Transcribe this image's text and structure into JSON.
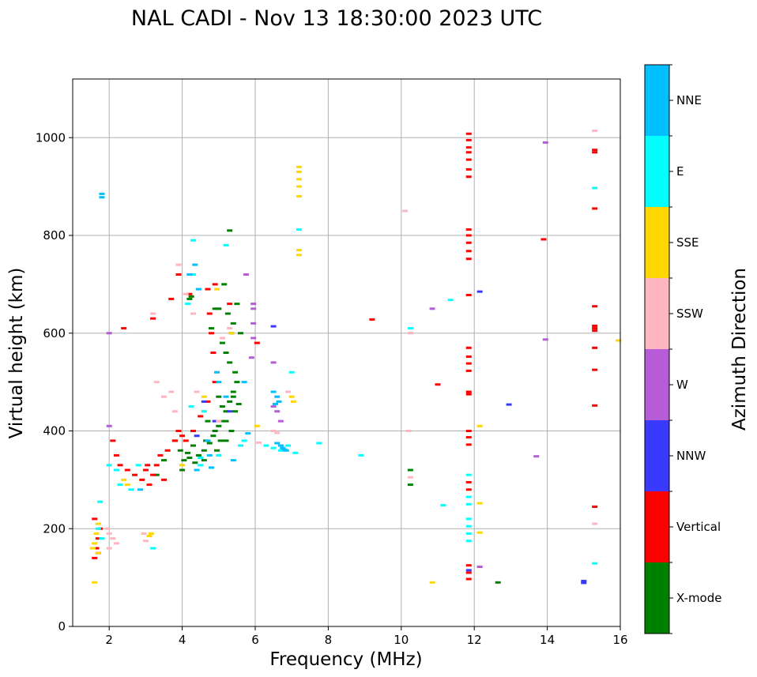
{
  "chart_data": {
    "type": "scatter",
    "title": "NAL CADI - Nov 13 18:30:00 2023 UTC",
    "xlabel": "Frequency (MHz)",
    "ylabel": "Virtual height (km)",
    "xlim": [
      1,
      16
    ],
    "ylim": [
      0,
      1120
    ],
    "xticks": [
      "2",
      "4",
      "6",
      "8",
      "10",
      "12",
      "14",
      "16"
    ],
    "yticks": [
      "0",
      "200",
      "400",
      "600",
      "800",
      "1000"
    ],
    "grid": true,
    "colorbar": {
      "label": "Azimuth Direction",
      "position": "right",
      "categories": [
        "X-mode",
        "Vertical",
        "NNW",
        "W",
        "SSW",
        "SSE",
        "E",
        "NNE"
      ],
      "colors": [
        "#008000",
        "#ff0000",
        "#3a3aff",
        "#b65cd6",
        "#ffb6c1",
        "#ffd700",
        "#00ffff",
        "#00bfff"
      ]
    },
    "series": [
      {
        "name": "X-mode",
        "points": [
          [
            4.05,
            340
          ],
          [
            4.2,
            345
          ],
          [
            4.3,
            370
          ],
          [
            4.45,
            350
          ],
          [
            4.6,
            360
          ],
          [
            4.75,
            375
          ],
          [
            4.85,
            390
          ],
          [
            4.9,
            400
          ],
          [
            5.0,
            410
          ],
          [
            5.1,
            420
          ],
          [
            5.2,
            440
          ],
          [
            5.3,
            460
          ],
          [
            5.4,
            480
          ],
          [
            5.5,
            500
          ],
          [
            5.45,
            520
          ],
          [
            5.3,
            540
          ],
          [
            5.2,
            560
          ],
          [
            5.1,
            580
          ],
          [
            5.35,
            600
          ],
          [
            5.4,
            620
          ],
          [
            5.25,
            640
          ],
          [
            5.5,
            660
          ],
          [
            5.2,
            420
          ],
          [
            5.35,
            400
          ],
          [
            5.05,
            380
          ],
          [
            4.95,
            360
          ],
          [
            4.6,
            340
          ],
          [
            4.35,
            335
          ],
          [
            4.15,
            355
          ],
          [
            4.8,
            610
          ],
          [
            5.0,
            650
          ],
          [
            5.15,
            700
          ],
          [
            4.2,
            670
          ],
          [
            4.25,
            675
          ],
          [
            3.8,
            380
          ],
          [
            3.95,
            360
          ],
          [
            3.5,
            340
          ],
          [
            3.3,
            310
          ],
          [
            4.0,
            320
          ],
          [
            5.4,
            470
          ],
          [
            5.45,
            440
          ],
          [
            5.55,
            455
          ],
          [
            5.0,
            470
          ],
          [
            4.7,
            420
          ],
          [
            4.65,
            380
          ],
          [
            5.6,
            600
          ],
          [
            4.9,
            650
          ],
          [
            5.3,
            810
          ],
          [
            10.25,
            320
          ],
          [
            10.25,
            290
          ],
          [
            12.65,
            90
          ],
          [
            5.2,
            380
          ],
          [
            5.1,
            450
          ]
        ]
      },
      {
        "name": "Vertical",
        "points": [
          [
            1.6,
            140
          ],
          [
            1.65,
            160
          ],
          [
            1.7,
            180
          ],
          [
            1.75,
            200
          ],
          [
            1.6,
            220
          ],
          [
            1.7,
            150
          ],
          [
            2.1,
            380
          ],
          [
            2.2,
            350
          ],
          [
            2.3,
            330
          ],
          [
            2.5,
            320
          ],
          [
            2.7,
            310
          ],
          [
            2.9,
            300
          ],
          [
            3.0,
            320
          ],
          [
            3.1,
            290
          ],
          [
            3.2,
            310
          ],
          [
            3.3,
            330
          ],
          [
            3.4,
            350
          ],
          [
            3.6,
            360
          ],
          [
            3.8,
            380
          ],
          [
            3.9,
            400
          ],
          [
            4.0,
            390
          ],
          [
            4.1,
            380
          ],
          [
            4.3,
            400
          ],
          [
            4.5,
            430
          ],
          [
            4.7,
            460
          ],
          [
            4.9,
            500
          ],
          [
            4.85,
            560
          ],
          [
            4.8,
            600
          ],
          [
            3.7,
            670
          ],
          [
            3.9,
            720
          ],
          [
            4.2,
            680
          ],
          [
            4.7,
            690
          ],
          [
            2.4,
            610
          ],
          [
            3.2,
            630
          ],
          [
            6.05,
            580
          ],
          [
            9.2,
            628
          ],
          [
            11.0,
            495
          ],
          [
            5.3,
            660
          ],
          [
            4.9,
            700
          ],
          [
            4.75,
            640
          ],
          [
            3.5,
            300
          ],
          [
            3.05,
            330
          ],
          [
            11.85,
            1008
          ],
          [
            11.85,
            995
          ],
          [
            11.85,
            980
          ],
          [
            11.85,
            970
          ],
          [
            11.85,
            955
          ],
          [
            11.85,
            935
          ],
          [
            11.85,
            920
          ],
          [
            11.85,
            812
          ],
          [
            11.85,
            800
          ],
          [
            11.85,
            785
          ],
          [
            11.85,
            768
          ],
          [
            11.85,
            752
          ],
          [
            11.85,
            678
          ],
          [
            11.85,
            570
          ],
          [
            11.85,
            552
          ],
          [
            11.85,
            538
          ],
          [
            11.85,
            523
          ],
          [
            11.85,
            480
          ],
          [
            11.85,
            475
          ],
          [
            11.85,
            400
          ],
          [
            11.85,
            387
          ],
          [
            11.85,
            372
          ],
          [
            11.85,
            295
          ],
          [
            11.85,
            280
          ],
          [
            11.85,
            125
          ],
          [
            11.85,
            110
          ],
          [
            11.85,
            97
          ],
          [
            13.9,
            792
          ],
          [
            15.3,
            975
          ],
          [
            15.3,
            970
          ],
          [
            15.3,
            855
          ],
          [
            15.3,
            655
          ],
          [
            15.3,
            615
          ],
          [
            15.3,
            610
          ],
          [
            15.3,
            605
          ],
          [
            15.3,
            570
          ],
          [
            15.3,
            525
          ],
          [
            15.3,
            452
          ],
          [
            15.3,
            245
          ]
        ]
      },
      {
        "name": "NNW",
        "points": [
          [
            4.4,
            390
          ],
          [
            4.9,
            420
          ],
          [
            5.3,
            440
          ],
          [
            4.6,
            460
          ],
          [
            6.5,
            614
          ],
          [
            12.15,
            685
          ],
          [
            12.95,
            454
          ],
          [
            15.0,
            93
          ],
          [
            15.0,
            89
          ],
          [
            11.85,
            115
          ]
        ]
      },
      {
        "name": "W",
        "points": [
          [
            5.75,
            720
          ],
          [
            5.95,
            660
          ],
          [
            5.95,
            650
          ],
          [
            5.95,
            590
          ],
          [
            5.9,
            550
          ],
          [
            6.5,
            540
          ],
          [
            6.5,
            450
          ],
          [
            6.6,
            440
          ],
          [
            6.7,
            420
          ],
          [
            10.85,
            650
          ],
          [
            13.7,
            348
          ],
          [
            13.95,
            990
          ],
          [
            13.95,
            587
          ],
          [
            12.15,
            122
          ],
          [
            2.0,
            600
          ],
          [
            2.0,
            410
          ],
          [
            5.95,
            620
          ]
        ]
      },
      {
        "name": "SSW",
        "points": [
          [
            1.95,
            200
          ],
          [
            2.0,
            190
          ],
          [
            2.1,
            180
          ],
          [
            2.2,
            170
          ],
          [
            2.0,
            160
          ],
          [
            2.95,
            190
          ],
          [
            3.0,
            175
          ],
          [
            3.3,
            500
          ],
          [
            3.5,
            470
          ],
          [
            3.7,
            480
          ],
          [
            3.8,
            440
          ],
          [
            4.3,
            640
          ],
          [
            4.1,
            680
          ],
          [
            5.1,
            590
          ],
          [
            5.3,
            610
          ],
          [
            5.0,
            420
          ],
          [
            6.5,
            400
          ],
          [
            6.6,
            396
          ],
          [
            6.9,
            480
          ],
          [
            10.1,
            850
          ],
          [
            10.2,
            400
          ],
          [
            10.25,
            305
          ],
          [
            10.25,
            600
          ],
          [
            15.3,
            1014
          ],
          [
            15.3,
            210
          ],
          [
            3.2,
            640
          ],
          [
            3.9,
            740
          ],
          [
            4.4,
            480
          ],
          [
            6.1,
            376
          ]
        ]
      },
      {
        "name": "SSE",
        "points": [
          [
            1.6,
            170
          ],
          [
            1.65,
            190
          ],
          [
            1.7,
            150
          ],
          [
            1.55,
            160
          ],
          [
            1.6,
            90
          ],
          [
            1.7,
            210
          ],
          [
            2.4,
            300
          ],
          [
            2.5,
            290
          ],
          [
            3.15,
            190
          ],
          [
            3.1,
            185
          ],
          [
            4.0,
            330
          ],
          [
            4.6,
            470
          ],
          [
            4.95,
            690
          ],
          [
            7.2,
            940
          ],
          [
            7.2,
            930
          ],
          [
            7.2,
            915
          ],
          [
            7.2,
            900
          ],
          [
            7.2,
            880
          ],
          [
            7.2,
            770
          ],
          [
            7.2,
            760
          ],
          [
            6.05,
            410
          ],
          [
            7.0,
            470
          ],
          [
            7.05,
            460
          ],
          [
            10.85,
            90
          ],
          [
            12.15,
            410
          ],
          [
            12.15,
            252
          ],
          [
            12.15,
            192
          ],
          [
            15.95,
            585
          ],
          [
            5.35,
            600
          ],
          [
            4.6,
            440
          ]
        ]
      },
      {
        "name": "E",
        "points": [
          [
            1.75,
            255
          ],
          [
            1.7,
            200
          ],
          [
            1.8,
            180
          ],
          [
            2.0,
            330
          ],
          [
            2.2,
            320
          ],
          [
            2.3,
            290
          ],
          [
            2.6,
            280
          ],
          [
            2.8,
            330
          ],
          [
            3.2,
            160
          ],
          [
            4.3,
            790
          ],
          [
            4.3,
            720
          ],
          [
            4.15,
            660
          ],
          [
            4.25,
            450
          ],
          [
            4.6,
            440
          ],
          [
            5.2,
            780
          ],
          [
            5.6,
            370
          ],
          [
            5.7,
            380
          ],
          [
            6.3,
            370
          ],
          [
            6.5,
            365
          ],
          [
            6.7,
            360
          ],
          [
            6.9,
            370
          ],
          [
            7.1,
            355
          ],
          [
            7.2,
            812
          ],
          [
            7.0,
            520
          ],
          [
            7.75,
            375
          ],
          [
            8.9,
            350
          ],
          [
            10.25,
            610
          ],
          [
            11.15,
            248
          ],
          [
            11.35,
            668
          ],
          [
            11.85,
            175
          ],
          [
            11.85,
            190
          ],
          [
            11.85,
            205
          ],
          [
            11.85,
            220
          ],
          [
            11.85,
            250
          ],
          [
            11.85,
            265
          ],
          [
            11.85,
            310
          ],
          [
            15.3,
            897
          ],
          [
            15.3,
            129
          ],
          [
            4.5,
            345
          ],
          [
            4.5,
            330
          ],
          [
            5.0,
            350
          ]
        ]
      },
      {
        "name": "NNE",
        "points": [
          [
            1.8,
            885
          ],
          [
            1.8,
            878
          ],
          [
            2.85,
            280
          ],
          [
            4.35,
            740
          ],
          [
            4.2,
            720
          ],
          [
            4.45,
            690
          ],
          [
            4.7,
            380
          ],
          [
            4.75,
            350
          ],
          [
            4.95,
            520
          ],
          [
            5.0,
            500
          ],
          [
            5.2,
            470
          ],
          [
            5.4,
            340
          ],
          [
            5.7,
            500
          ],
          [
            5.8,
            395
          ],
          [
            6.5,
            480
          ],
          [
            6.6,
            470
          ],
          [
            6.65,
            460
          ],
          [
            6.55,
            455
          ],
          [
            6.6,
            375
          ],
          [
            6.7,
            370
          ],
          [
            6.75,
            365
          ],
          [
            6.8,
            362
          ],
          [
            6.85,
            360
          ],
          [
            4.4,
            320
          ],
          [
            4.8,
            325
          ]
        ]
      }
    ]
  }
}
